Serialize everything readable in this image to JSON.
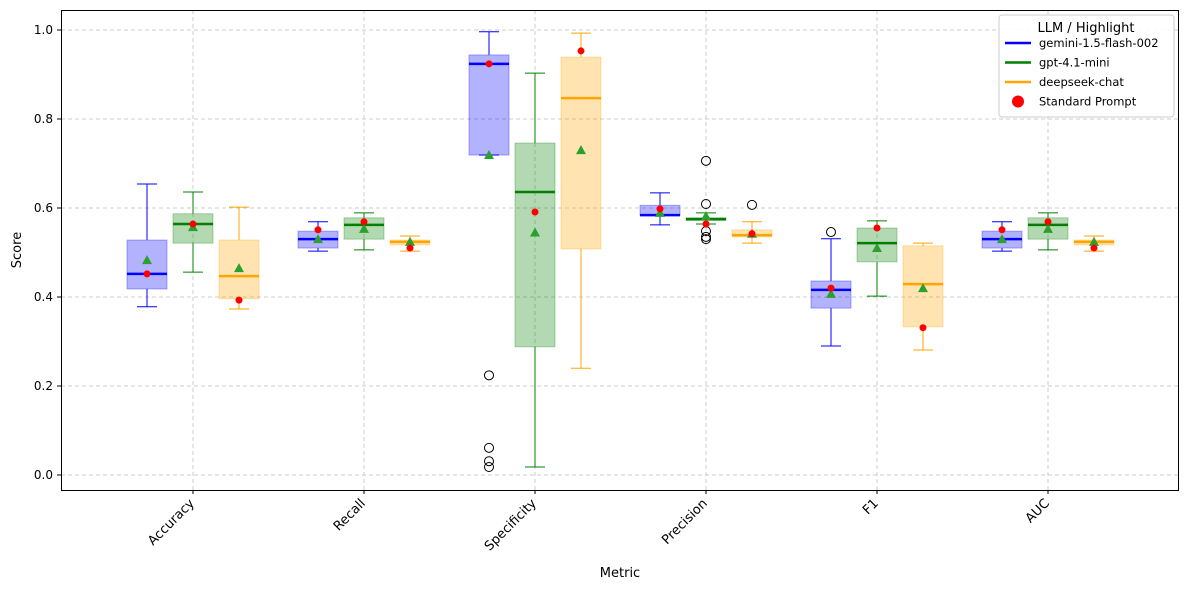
{
  "chart_data": {
    "type": "box",
    "title": "",
    "xlabel": "Metric",
    "ylabel": "Score",
    "ylim": [
      -0.033,
      1.043
    ],
    "yticks": [
      "0.0",
      "0.2",
      "0.4",
      "0.6",
      "0.8",
      "1.0"
    ],
    "grid": true,
    "legend": {
      "title": "LLM / Highlight",
      "placement": "top-right",
      "entries": [
        "gemini-1.5-flash-002",
        "gpt-4.1-mini",
        "deepseek-chat",
        "Standard Prompt"
      ]
    },
    "categories": [
      "Accuracy",
      "Recall",
      "Specificity",
      "Precision",
      "F1",
      "AUC"
    ],
    "highlight_color": "#ff0000",
    "mean_marker_color": "#2ca02c",
    "series": [
      {
        "name": "gemini-1.5-flash-002",
        "color": "#0000ff",
        "boxes": [
          {
            "whislo": 0.378,
            "q1": 0.418,
            "med": 0.452,
            "q3": 0.528,
            "whishi": 0.654,
            "mean": 0.483,
            "highlight": 0.452,
            "fliers": []
          },
          {
            "whislo": 0.503,
            "q1": 0.51,
            "med": 0.53,
            "q3": 0.548,
            "whishi": 0.569,
            "mean": 0.53,
            "highlight": 0.551,
            "fliers": []
          },
          {
            "whislo": 0.719,
            "q1": 0.719,
            "med": 0.924,
            "q3": 0.944,
            "whishi": 0.996,
            "mean": 0.719,
            "highlight": 0.924,
            "fliers": [
              0.224,
              0.061,
              0.031,
              0.018
            ]
          },
          {
            "whislo": 0.562,
            "q1": 0.584,
            "med": 0.584,
            "q3": 0.606,
            "whishi": 0.634,
            "mean": 0.589,
            "highlight": 0.598,
            "fliers": []
          },
          {
            "whislo": 0.29,
            "q1": 0.375,
            "med": 0.416,
            "q3": 0.436,
            "whishi": 0.531,
            "mean": 0.407,
            "highlight": 0.42,
            "fliers": [
              0.546
            ]
          },
          {
            "whislo": 0.503,
            "q1": 0.51,
            "med": 0.53,
            "q3": 0.548,
            "whishi": 0.569,
            "mean": 0.53,
            "highlight": 0.551,
            "fliers": []
          }
        ]
      },
      {
        "name": "gpt-4.1-mini",
        "color": "#008000",
        "boxes": [
          {
            "whislo": 0.456,
            "q1": 0.521,
            "med": 0.564,
            "q3": 0.587,
            "whishi": 0.636,
            "mean": 0.557,
            "highlight": 0.564,
            "fliers": []
          },
          {
            "whislo": 0.506,
            "q1": 0.53,
            "med": 0.562,
            "q3": 0.578,
            "whishi": 0.589,
            "mean": 0.553,
            "highlight": 0.569,
            "fliers": []
          },
          {
            "whislo": 0.018,
            "q1": 0.288,
            "med": 0.636,
            "q3": 0.746,
            "whishi": 0.903,
            "mean": 0.545,
            "highlight": 0.591,
            "fliers": []
          },
          {
            "whislo": 0.564,
            "q1": 0.572,
            "med": 0.575,
            "q3": 0.578,
            "whishi": 0.589,
            "mean": 0.582,
            "highlight": 0.564,
            "fliers": [
              0.706,
              0.609,
              0.548,
              0.535,
              0.53
            ]
          },
          {
            "whislo": 0.402,
            "q1": 0.479,
            "med": 0.521,
            "q3": 0.555,
            "whishi": 0.571,
            "mean": 0.51,
            "highlight": 0.555,
            "fliers": []
          },
          {
            "whislo": 0.506,
            "q1": 0.53,
            "med": 0.562,
            "q3": 0.578,
            "whishi": 0.589,
            "mean": 0.553,
            "highlight": 0.569,
            "fliers": []
          }
        ]
      },
      {
        "name": "deepseek-chat",
        "color": "#ffa500",
        "boxes": [
          {
            "whislo": 0.373,
            "q1": 0.396,
            "med": 0.447,
            "q3": 0.528,
            "whishi": 0.602,
            "mean": 0.465,
            "highlight": 0.393,
            "fliers": []
          },
          {
            "whislo": 0.503,
            "q1": 0.517,
            "med": 0.524,
            "q3": 0.528,
            "whishi": 0.537,
            "mean": 0.524,
            "highlight": 0.51,
            "fliers": []
          },
          {
            "whislo": 0.24,
            "q1": 0.508,
            "med": 0.847,
            "q3": 0.939,
            "whishi": 0.993,
            "mean": 0.73,
            "highlight": 0.953,
            "fliers": []
          },
          {
            "whislo": 0.521,
            "q1": 0.535,
            "med": 0.539,
            "q3": 0.551,
            "whishi": 0.569,
            "mean": 0.542,
            "highlight": 0.542,
            "fliers": [
              0.607
            ]
          },
          {
            "whislo": 0.281,
            "q1": 0.333,
            "med": 0.429,
            "q3": 0.515,
            "whishi": 0.521,
            "mean": 0.42,
            "highlight": 0.331,
            "fliers": []
          },
          {
            "whislo": 0.503,
            "q1": 0.517,
            "med": 0.524,
            "q3": 0.528,
            "whishi": 0.537,
            "mean": 0.524,
            "highlight": 0.51,
            "fliers": []
          }
        ]
      }
    ]
  }
}
